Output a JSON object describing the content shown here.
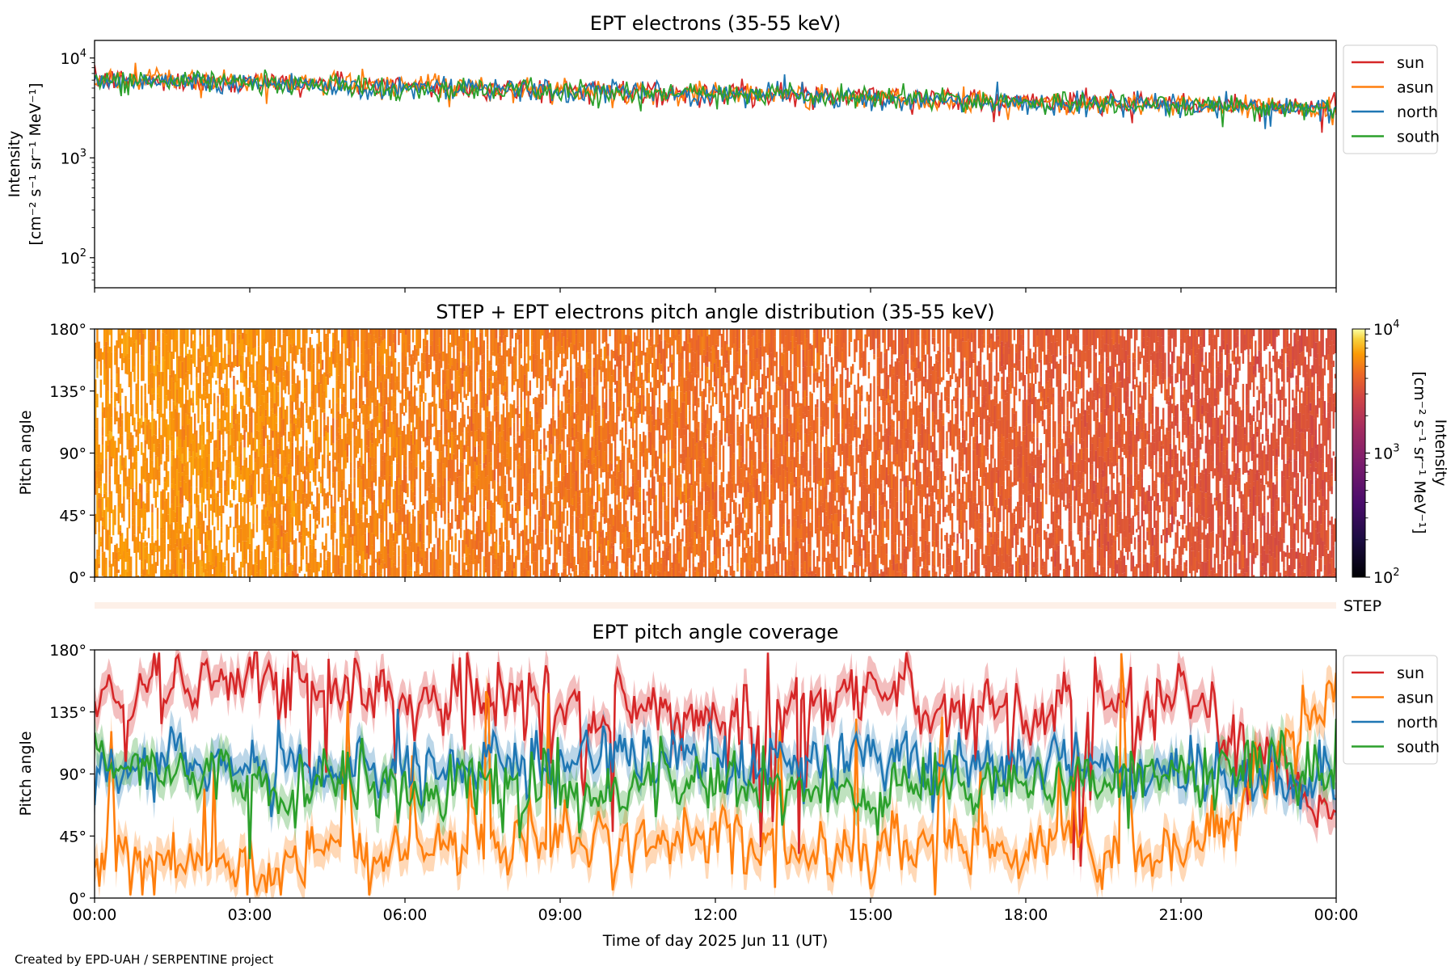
{
  "footer": "Created by EPD-UAH / SERPENTINE project",
  "colors": {
    "sun": "#d62728",
    "asun": "#ff7f0e",
    "north": "#1f77b4",
    "south": "#2ca02c"
  },
  "chart_data": [
    {
      "type": "line",
      "title": "EPT electrons (35-55 keV)",
      "ylabel": "Intensity",
      "yunit": "[cm⁻² s⁻¹ sr⁻¹ MeV⁻¹]",
      "yscale": "log",
      "ylim": [
        50,
        15000
      ],
      "yticks": [
        {
          "value": 100,
          "base": "10",
          "exp": "2"
        },
        {
          "value": 1000,
          "base": "10",
          "exp": "3"
        },
        {
          "value": 10000,
          "base": "10",
          "exp": "4"
        }
      ],
      "xlim": [
        "00:00",
        "24:00"
      ],
      "legend_loc": "outside-right",
      "series": [
        {
          "name": "sun",
          "x": [
            "00:00",
            "03:00",
            "06:00",
            "09:00",
            "12:00",
            "15:00",
            "18:00",
            "21:00",
            "24:00"
          ],
          "values": [
            6000,
            5800,
            5100,
            4800,
            4500,
            4100,
            3700,
            3400,
            3200
          ]
        },
        {
          "name": "asun",
          "x": [
            "00:00",
            "03:00",
            "06:00",
            "09:00",
            "12:00",
            "15:00",
            "18:00",
            "21:00",
            "24:00"
          ],
          "values": [
            6200,
            5900,
            5200,
            4800,
            4400,
            4100,
            3600,
            3400,
            3200
          ]
        },
        {
          "name": "north",
          "x": [
            "00:00",
            "03:00",
            "06:00",
            "09:00",
            "12:00",
            "15:00",
            "18:00",
            "21:00",
            "24:00"
          ],
          "values": [
            6100,
            5700,
            4900,
            4700,
            4400,
            3900,
            3500,
            3300,
            3100
          ]
        },
        {
          "name": "south",
          "x": [
            "00:00",
            "03:00",
            "06:00",
            "09:00",
            "12:00",
            "15:00",
            "18:00",
            "21:00",
            "24:00"
          ],
          "values": [
            6000,
            5700,
            4900,
            4600,
            4400,
            4000,
            3600,
            3400,
            3100
          ]
        }
      ]
    },
    {
      "type": "heatmap",
      "title": "STEP + EPT electrons pitch angle distribution (35-55 keV)",
      "ylabel": "Pitch angle",
      "yticks": [
        "0°",
        "45°",
        "90°",
        "135°",
        "180°"
      ],
      "ylim": [
        0,
        180
      ],
      "xlim": [
        "00:00",
        "24:00"
      ],
      "colorbar": {
        "label": "Intensity",
        "unit": "[cm⁻² s⁻¹ sr⁻¹ MeV⁻¹]",
        "scale": "log",
        "range": [
          100,
          10000
        ],
        "ticks": [
          {
            "value": 100,
            "base": "10",
            "exp": "2"
          },
          {
            "value": 1000,
            "base": "10",
            "exp": "3"
          },
          {
            "value": 10000,
            "base": "10",
            "exp": "4"
          }
        ],
        "colormap": "inferno-like"
      },
      "intensity_trend": {
        "x": [
          "00:00",
          "03:00",
          "06:00",
          "09:00",
          "12:00",
          "15:00",
          "18:00",
          "21:00",
          "24:00"
        ],
        "values": [
          6000,
          5800,
          5100,
          4800,
          4500,
          4100,
          3700,
          3400,
          3200
        ]
      }
    },
    {
      "type": "bar",
      "label": "STEP",
      "xlim": [
        "00:00",
        "24:00"
      ]
    },
    {
      "type": "line",
      "title": "EPT pitch angle coverage",
      "ylabel": "Pitch angle",
      "xlabel": "Time of day 2025 Jun 11 (UT)",
      "yticks": [
        "0°",
        "45°",
        "90°",
        "135°",
        "180°"
      ],
      "ylim": [
        0,
        180
      ],
      "xticks": [
        "00:00",
        "03:00",
        "06:00",
        "09:00",
        "12:00",
        "15:00",
        "18:00",
        "21:00",
        "00:00"
      ],
      "legend_loc": "outside-right",
      "series": [
        {
          "name": "sun",
          "x": [
            "00:00",
            "03:00",
            "06:00",
            "09:00",
            "12:00",
            "15:00",
            "18:00",
            "21:00",
            "24:00"
          ],
          "values": [
            150,
            160,
            140,
            145,
            130,
            150,
            140,
            150,
            60
          ]
        },
        {
          "name": "asun",
          "x": [
            "00:00",
            "03:00",
            "06:00",
            "09:00",
            "12:00",
            "15:00",
            "18:00",
            "21:00",
            "24:00"
          ],
          "values": [
            30,
            20,
            40,
            35,
            45,
            30,
            40,
            30,
            150
          ]
        },
        {
          "name": "north",
          "x": [
            "00:00",
            "03:00",
            "06:00",
            "09:00",
            "12:00",
            "15:00",
            "18:00",
            "21:00",
            "24:00"
          ],
          "values": [
            90,
            100,
            95,
            105,
            100,
            105,
            100,
            90,
            80
          ]
        },
        {
          "name": "south",
          "x": [
            "00:00",
            "03:00",
            "06:00",
            "09:00",
            "12:00",
            "15:00",
            "18:00",
            "21:00",
            "24:00"
          ],
          "values": [
            100,
            85,
            80,
            75,
            80,
            75,
            80,
            90,
            100
          ]
        }
      ]
    }
  ]
}
